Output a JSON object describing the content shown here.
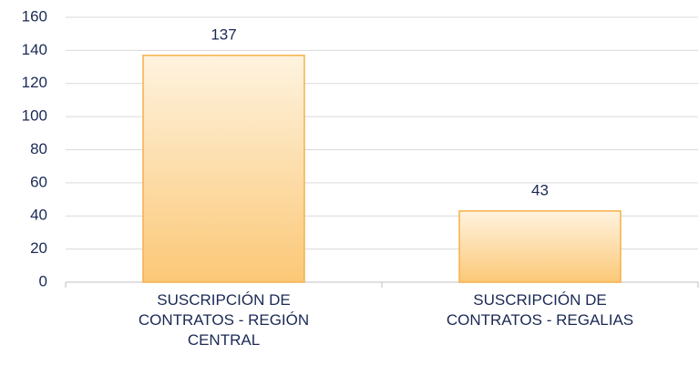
{
  "chart_data": {
    "type": "bar",
    "categories": [
      "SUSCRIPCIÓN DE CONTRATOS - REGIÓN CENTRAL",
      "SUSCRIPCIÓN DE CONTRATOS - REGALIAS"
    ],
    "values": [
      137,
      43
    ],
    "color": "#f5b04a",
    "ylim": [
      0,
      160
    ],
    "yticks": [
      0,
      20,
      40,
      60,
      80,
      100,
      120,
      140,
      160
    ],
    "grid": true
  }
}
